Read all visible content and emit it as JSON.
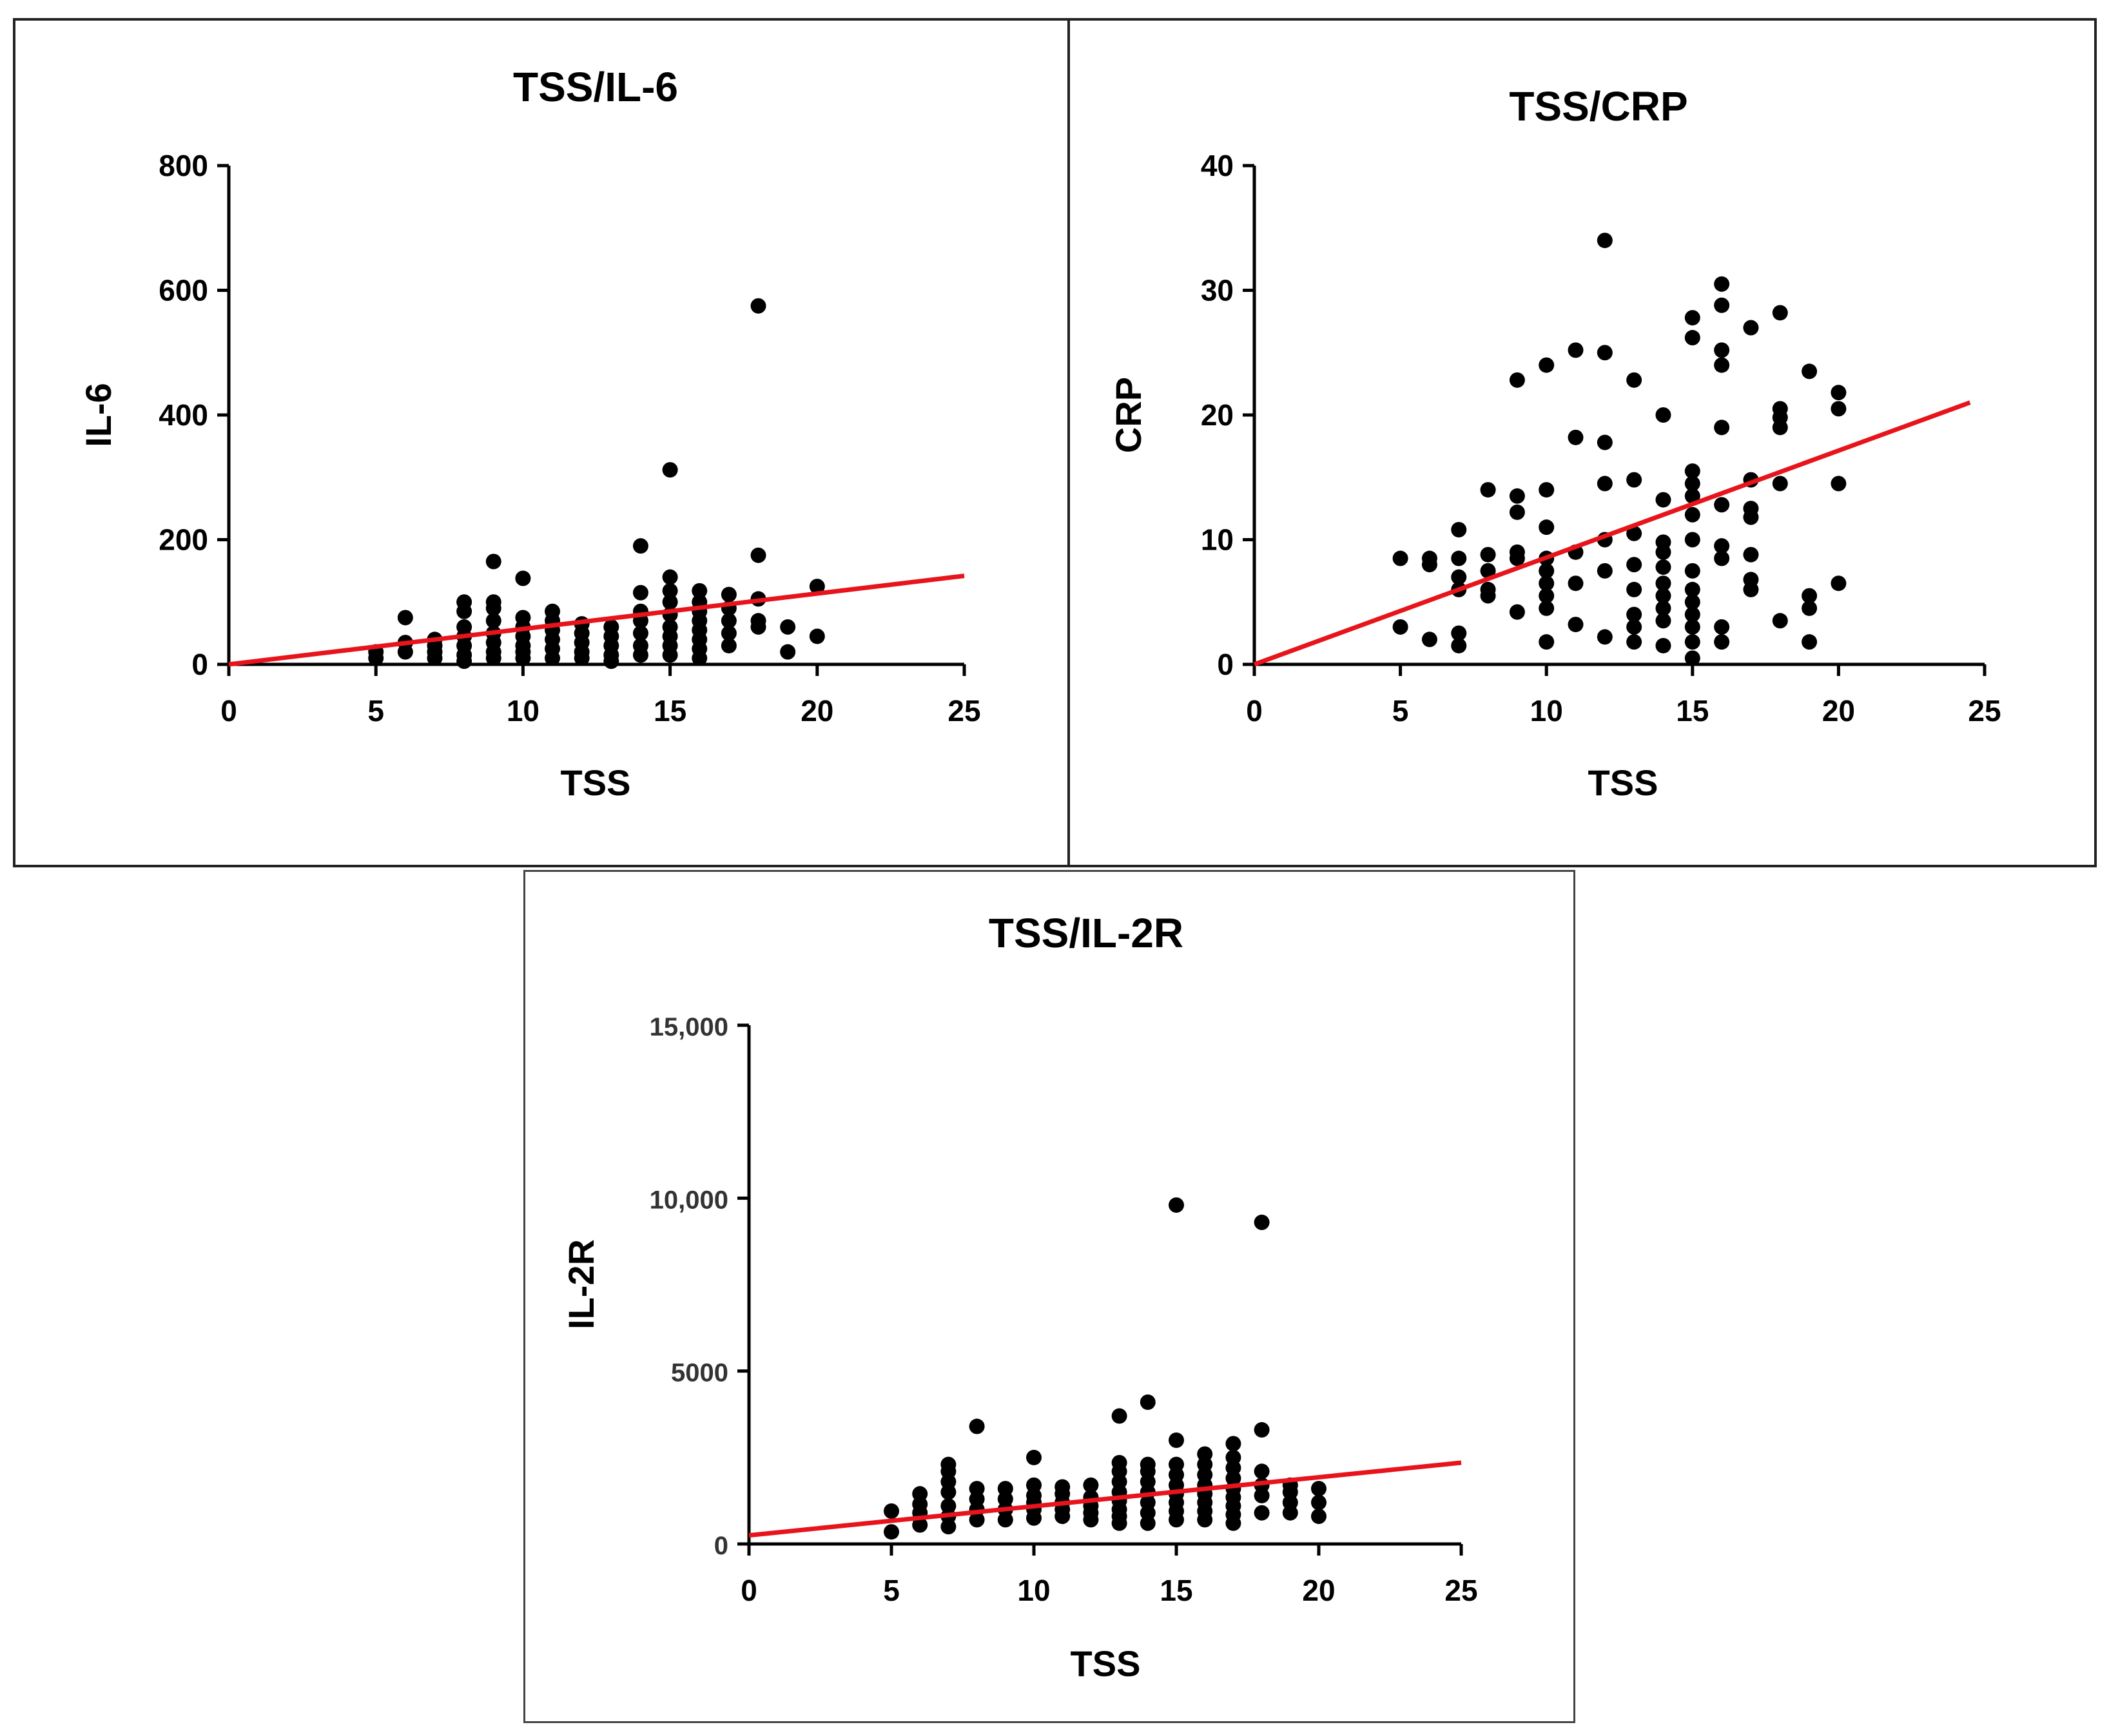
{
  "colors": {
    "points": "#000000",
    "fit_line": "#e8141b",
    "axis": "#000000",
    "frame": "#222222"
  },
  "chart_data": [
    {
      "id": "il6",
      "type": "scatter",
      "title": "TSS/IL-6",
      "xlabel": "TSS",
      "ylabel": "IL-6",
      "xlim": [
        0,
        25
      ],
      "ylim": [
        0,
        800
      ],
      "xticks": [
        0,
        5,
        10,
        15,
        20,
        25
      ],
      "yticks": [
        0,
        200,
        400,
        600,
        800
      ],
      "xtick_labels": [
        "0",
        "5",
        "10",
        "15",
        "20",
        "25"
      ],
      "ytick_labels": [
        "0",
        "200",
        "400",
        "600",
        "800"
      ],
      "grid": false,
      "fit_line": {
        "x": [
          0,
          25
        ],
        "y": [
          0,
          142
        ]
      },
      "points": [
        [
          5,
          10
        ],
        [
          5,
          20
        ],
        [
          6,
          20
        ],
        [
          6,
          35
        ],
        [
          6,
          75
        ],
        [
          7,
          10
        ],
        [
          7,
          20
        ],
        [
          7,
          30
        ],
        [
          7,
          40
        ],
        [
          8,
          5
        ],
        [
          8,
          15
        ],
        [
          8,
          30
        ],
        [
          8,
          45
        ],
        [
          8,
          60
        ],
        [
          8,
          85
        ],
        [
          8,
          100
        ],
        [
          9,
          10
        ],
        [
          9,
          20
        ],
        [
          9,
          35
        ],
        [
          9,
          50
        ],
        [
          9,
          70
        ],
        [
          9,
          90
        ],
        [
          9,
          100
        ],
        [
          9,
          165
        ],
        [
          10,
          10
        ],
        [
          10,
          20
        ],
        [
          10,
          30
        ],
        [
          10,
          45
        ],
        [
          10,
          60
        ],
        [
          10,
          75
        ],
        [
          10,
          138
        ],
        [
          11,
          10
        ],
        [
          11,
          25
        ],
        [
          11,
          40
        ],
        [
          11,
          55
        ],
        [
          11,
          70
        ],
        [
          11,
          85
        ],
        [
          12,
          10
        ],
        [
          12,
          20
        ],
        [
          12,
          35
        ],
        [
          12,
          50
        ],
        [
          12,
          65
        ],
        [
          13,
          5
        ],
        [
          13,
          15
        ],
        [
          13,
          30
        ],
        [
          13,
          45
        ],
        [
          13,
          60
        ],
        [
          14,
          15
        ],
        [
          14,
          30
        ],
        [
          14,
          50
        ],
        [
          14,
          70
        ],
        [
          14,
          85
        ],
        [
          14,
          115
        ],
        [
          14,
          190
        ],
        [
          15,
          15
        ],
        [
          15,
          30
        ],
        [
          15,
          45
        ],
        [
          15,
          60
        ],
        [
          15,
          80
        ],
        [
          15,
          100
        ],
        [
          15,
          118
        ],
        [
          15,
          140
        ],
        [
          15,
          312
        ],
        [
          16,
          10
        ],
        [
          16,
          25
        ],
        [
          16,
          40
        ],
        [
          16,
          55
        ],
        [
          16,
          70
        ],
        [
          16,
          85
        ],
        [
          16,
          100
        ],
        [
          16,
          118
        ],
        [
          17,
          30
        ],
        [
          17,
          50
        ],
        [
          17,
          70
        ],
        [
          17,
          90
        ],
        [
          17,
          112
        ],
        [
          18,
          60
        ],
        [
          18,
          70
        ],
        [
          18,
          105
        ],
        [
          18,
          175
        ],
        [
          18,
          575
        ],
        [
          19,
          20
        ],
        [
          19,
          60
        ],
        [
          20,
          45
        ],
        [
          20,
          125
        ]
      ]
    },
    {
      "id": "crp",
      "type": "scatter",
      "title": "TSS/CRP",
      "xlabel": "TSS",
      "ylabel": "CRP",
      "xlim": [
        0,
        25
      ],
      "ylim": [
        0,
        40
      ],
      "xticks": [
        0,
        5,
        10,
        15,
        20,
        25
      ],
      "yticks": [
        0,
        10,
        20,
        30,
        40
      ],
      "xtick_labels": [
        "0",
        "5",
        "10",
        "15",
        "20",
        "25"
      ],
      "ytick_labels": [
        "0",
        "10",
        "20",
        "30",
        "40"
      ],
      "grid": false,
      "fit_line": {
        "x": [
          0,
          24.5
        ],
        "y": [
          0,
          21
        ]
      },
      "points": [
        [
          5,
          3
        ],
        [
          5,
          8.5
        ],
        [
          6,
          2
        ],
        [
          6,
          8
        ],
        [
          6,
          8.5
        ],
        [
          7,
          1.5
        ],
        [
          7,
          2.5
        ],
        [
          7,
          6
        ],
        [
          7,
          7
        ],
        [
          7,
          8.5
        ],
        [
          7,
          10.8
        ],
        [
          8,
          5.5
        ],
        [
          8,
          6
        ],
        [
          8,
          7.5
        ],
        [
          8,
          8.8
        ],
        [
          8,
          14
        ],
        [
          9,
          4.2
        ],
        [
          9,
          8.5
        ],
        [
          9,
          9
        ],
        [
          9,
          12.2
        ],
        [
          9,
          13.5
        ],
        [
          9,
          22.8
        ],
        [
          10,
          1.8
        ],
        [
          10,
          4.5
        ],
        [
          10,
          5.5
        ],
        [
          10,
          6.5
        ],
        [
          10,
          7.5
        ],
        [
          10,
          8.5
        ],
        [
          10,
          11
        ],
        [
          10,
          14
        ],
        [
          10,
          24
        ],
        [
          11,
          3.2
        ],
        [
          11,
          6.5
        ],
        [
          11,
          9
        ],
        [
          11,
          18.2
        ],
        [
          11,
          25.2
        ],
        [
          12,
          2.2
        ],
        [
          12,
          7.5
        ],
        [
          12,
          10
        ],
        [
          12,
          14.5
        ],
        [
          12,
          17.8
        ],
        [
          12,
          25
        ],
        [
          12,
          34
        ],
        [
          13,
          1.8
        ],
        [
          13,
          3
        ],
        [
          13,
          4
        ],
        [
          13,
          6
        ],
        [
          13,
          8
        ],
        [
          13,
          10.5
        ],
        [
          13,
          14.8
        ],
        [
          13,
          22.8
        ],
        [
          14,
          1.5
        ],
        [
          14,
          3.5
        ],
        [
          14,
          4.5
        ],
        [
          14,
          5.5
        ],
        [
          14,
          6.5
        ],
        [
          14,
          7.8
        ],
        [
          14,
          9
        ],
        [
          14,
          9.8
        ],
        [
          14,
          13.2
        ],
        [
          14,
          20
        ],
        [
          15,
          0.5
        ],
        [
          15,
          1.8
        ],
        [
          15,
          3
        ],
        [
          15,
          4
        ],
        [
          15,
          5
        ],
        [
          15,
          6
        ],
        [
          15,
          7.5
        ],
        [
          15,
          10
        ],
        [
          15,
          12
        ],
        [
          15,
          13.5
        ],
        [
          15,
          14.5
        ],
        [
          15,
          15.5
        ],
        [
          15,
          26.2
        ],
        [
          15,
          27.8
        ],
        [
          16,
          1.8
        ],
        [
          16,
          3
        ],
        [
          16,
          8.5
        ],
        [
          16,
          9.5
        ],
        [
          16,
          12.8
        ],
        [
          16,
          19
        ],
        [
          16,
          24
        ],
        [
          16,
          25.2
        ],
        [
          16,
          28.8
        ],
        [
          16,
          30.5
        ],
        [
          17,
          6
        ],
        [
          17,
          6.8
        ],
        [
          17,
          8.8
        ],
        [
          17,
          11.8
        ],
        [
          17,
          12.5
        ],
        [
          17,
          14.8
        ],
        [
          17,
          27
        ],
        [
          18,
          3.5
        ],
        [
          18,
          14.5
        ],
        [
          18,
          19
        ],
        [
          18,
          19.8
        ],
        [
          18,
          20.5
        ],
        [
          18,
          28.2
        ],
        [
          19,
          1.8
        ],
        [
          19,
          4.5
        ],
        [
          19,
          5.5
        ],
        [
          19,
          23.5
        ],
        [
          20,
          6.5
        ],
        [
          20,
          14.5
        ],
        [
          20,
          20.5
        ],
        [
          20,
          21.8
        ]
      ]
    },
    {
      "id": "il2r",
      "type": "scatter",
      "title": "TSS/IL-2R",
      "xlabel": "TSS",
      "ylabel": "IL-2R",
      "xlim": [
        0,
        25
      ],
      "ylim": [
        0,
        15000
      ],
      "xticks": [
        0,
        5,
        10,
        15,
        20,
        25
      ],
      "yticks": [
        0,
        5000,
        10000,
        15000
      ],
      "xtick_labels": [
        "0",
        "5",
        "10",
        "15",
        "20",
        "25"
      ],
      "ytick_labels": [
        "0",
        "5000",
        "10,000",
        "15,000"
      ],
      "grid": false,
      "fit_line": {
        "x": [
          0,
          25
        ],
        "y": [
          250,
          2350
        ]
      },
      "points": [
        [
          5,
          350
        ],
        [
          5,
          950
        ],
        [
          6,
          550
        ],
        [
          6,
          900
        ],
        [
          6,
          1150
        ],
        [
          6,
          1450
        ],
        [
          7,
          500
        ],
        [
          7,
          800
        ],
        [
          7,
          1100
        ],
        [
          7,
          1500
        ],
        [
          7,
          1800
        ],
        [
          7,
          2100
        ],
        [
          7,
          2300
        ],
        [
          8,
          700
        ],
        [
          8,
          1000
        ],
        [
          8,
          1300
        ],
        [
          8,
          1600
        ],
        [
          8,
          3400
        ],
        [
          9,
          700
        ],
        [
          9,
          1000
        ],
        [
          9,
          1300
        ],
        [
          9,
          1600
        ],
        [
          10,
          750
        ],
        [
          10,
          1000
        ],
        [
          10,
          1200
        ],
        [
          10,
          1400
        ],
        [
          10,
          1700
        ],
        [
          10,
          2500
        ],
        [
          11,
          800
        ],
        [
          11,
          1000
        ],
        [
          11,
          1200
        ],
        [
          11,
          1450
        ],
        [
          11,
          1650
        ],
        [
          12,
          700
        ],
        [
          12,
          900
        ],
        [
          12,
          1100
        ],
        [
          12,
          1350
        ],
        [
          12,
          1700
        ],
        [
          13,
          600
        ],
        [
          13,
          800
        ],
        [
          13,
          1000
        ],
        [
          13,
          1250
        ],
        [
          13,
          1500
        ],
        [
          13,
          1800
        ],
        [
          13,
          2100
        ],
        [
          13,
          2350
        ],
        [
          13,
          3700
        ],
        [
          14,
          600
        ],
        [
          14,
          900
        ],
        [
          14,
          1200
        ],
        [
          14,
          1500
        ],
        [
          14,
          1800
        ],
        [
          14,
          2100
        ],
        [
          14,
          2300
        ],
        [
          14,
          4100
        ],
        [
          15,
          700
        ],
        [
          15,
          950
        ],
        [
          15,
          1200
        ],
        [
          15,
          1450
        ],
        [
          15,
          1700
        ],
        [
          15,
          2000
        ],
        [
          15,
          2300
        ],
        [
          15,
          3000
        ],
        [
          15,
          9800
        ],
        [
          16,
          700
        ],
        [
          16,
          950
        ],
        [
          16,
          1200
        ],
        [
          16,
          1450
        ],
        [
          16,
          1700
        ],
        [
          16,
          2000
        ],
        [
          16,
          2300
        ],
        [
          16,
          2600
        ],
        [
          17,
          600
        ],
        [
          17,
          850
        ],
        [
          17,
          1100
        ],
        [
          17,
          1350
        ],
        [
          17,
          1600
        ],
        [
          17,
          1900
        ],
        [
          17,
          2200
        ],
        [
          17,
          2500
        ],
        [
          17,
          2900
        ],
        [
          18,
          900
        ],
        [
          18,
          1400
        ],
        [
          18,
          1700
        ],
        [
          18,
          2100
        ],
        [
          18,
          3300
        ],
        [
          18,
          9300
        ],
        [
          19,
          900
        ],
        [
          19,
          1200
        ],
        [
          19,
          1500
        ],
        [
          19,
          1700
        ],
        [
          20,
          800
        ],
        [
          20,
          1200
        ],
        [
          20,
          1600
        ]
      ]
    }
  ]
}
